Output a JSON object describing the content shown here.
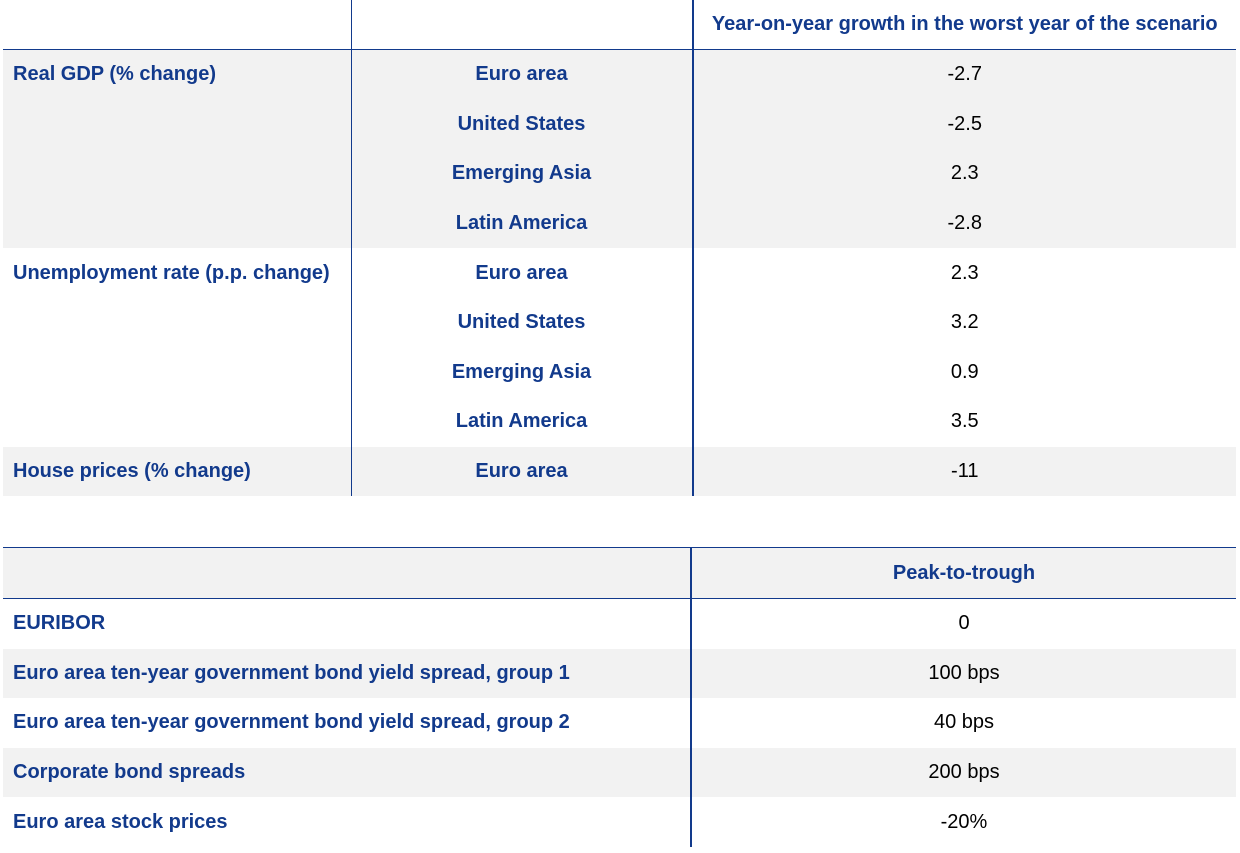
{
  "table1": {
    "header": {
      "col1": "",
      "col2": "",
      "col3": "Year-on-year growth in the worst year of the scenario"
    },
    "rows": [
      {
        "variable": "Real GDP (% change)",
        "region": "Euro area",
        "value": "-2.7",
        "shaded": true
      },
      {
        "variable": "",
        "region": "United States",
        "value": "-2.5",
        "shaded": true
      },
      {
        "variable": "",
        "region": "Emerging Asia",
        "value": "2.3",
        "shaded": true
      },
      {
        "variable": "",
        "region": "Latin America",
        "value": "-2.8",
        "shaded": true
      },
      {
        "variable": "Unemployment rate (p.p. change)",
        "region": "Euro area",
        "value": "2.3",
        "shaded": false
      },
      {
        "variable": "",
        "region": "United States",
        "value": "3.2",
        "shaded": false
      },
      {
        "variable": "",
        "region": "Emerging Asia",
        "value": "0.9",
        "shaded": false
      },
      {
        "variable": "",
        "region": "Latin America",
        "value": "3.5",
        "shaded": false
      },
      {
        "variable": "House prices (% change)",
        "region": "Euro area",
        "value": "-11",
        "shaded": true
      }
    ]
  },
  "table2": {
    "header": {
      "col1": "",
      "col2": "Peak-to-trough"
    },
    "rows": [
      {
        "variable": "EURIBOR",
        "value": "0",
        "shaded": false
      },
      {
        "variable": "Euro area ten-year government bond yield spread, group 1",
        "value": "100 bps",
        "shaded": true
      },
      {
        "variable": "Euro area ten-year government bond yield spread, group 2",
        "value": "40 bps",
        "shaded": false
      },
      {
        "variable": "Corporate bond spreads",
        "value": "200 bps",
        "shaded": true
      },
      {
        "variable": "Euro area stock prices",
        "value": "-20%",
        "shaded": false
      }
    ]
  },
  "colors": {
    "text_accent": "#123a8c",
    "shade": "#f2f2f2",
    "rule": "#123a8c"
  }
}
